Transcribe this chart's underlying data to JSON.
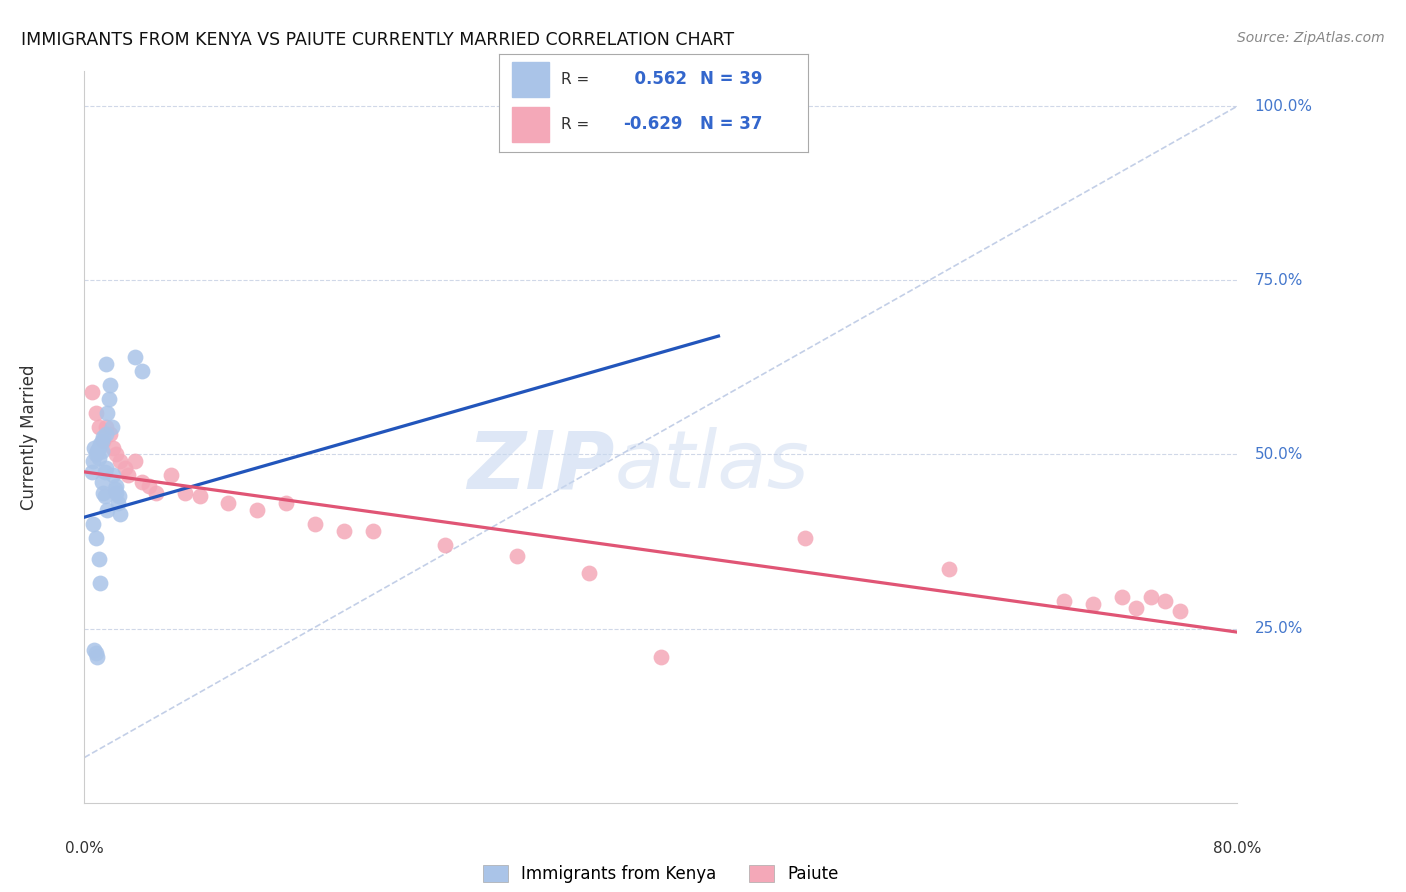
{
  "title": "IMMIGRANTS FROM KENYA VS PAIUTE CURRENTLY MARRIED CORRELATION CHART",
  "source": "Source: ZipAtlas.com",
  "ylabel": "Currently Married",
  "legend_label1": "Immigrants from Kenya",
  "legend_label2": "Paiute",
  "r1": 0.562,
  "n1": 39,
  "r2": -0.629,
  "n2": 37,
  "color_blue": "#aac4e8",
  "color_pink": "#f4a8b8",
  "color_blue_line": "#2255bb",
  "color_pink_line": "#e05575",
  "color_diag": "#aabbdd",
  "kenya_x": [
    0.005,
    0.006,
    0.007,
    0.008,
    0.009,
    0.01,
    0.01,
    0.011,
    0.012,
    0.012,
    0.013,
    0.014,
    0.015,
    0.015,
    0.016,
    0.017,
    0.018,
    0.019,
    0.02,
    0.021,
    0.022,
    0.022,
    0.023,
    0.024,
    0.025,
    0.006,
    0.008,
    0.01,
    0.012,
    0.014,
    0.016,
    0.035,
    0.04,
    0.007,
    0.008,
    0.009,
    0.011,
    0.013,
    0.015
  ],
  "kenya_y": [
    0.475,
    0.49,
    0.51,
    0.5,
    0.505,
    0.51,
    0.495,
    0.515,
    0.52,
    0.505,
    0.525,
    0.475,
    0.48,
    0.53,
    0.56,
    0.58,
    0.6,
    0.54,
    0.47,
    0.45,
    0.445,
    0.455,
    0.43,
    0.44,
    0.415,
    0.4,
    0.38,
    0.35,
    0.46,
    0.44,
    0.42,
    0.64,
    0.62,
    0.22,
    0.215,
    0.21,
    0.315,
    0.445,
    0.63
  ],
  "paiute_x": [
    0.005,
    0.008,
    0.01,
    0.013,
    0.015,
    0.018,
    0.02,
    0.022,
    0.025,
    0.028,
    0.03,
    0.035,
    0.04,
    0.045,
    0.05,
    0.06,
    0.07,
    0.08,
    0.1,
    0.12,
    0.14,
    0.16,
    0.18,
    0.5,
    0.6,
    0.68,
    0.7,
    0.72,
    0.73,
    0.74,
    0.75,
    0.76,
    0.2,
    0.25,
    0.3,
    0.35,
    0.4
  ],
  "paiute_y": [
    0.59,
    0.56,
    0.54,
    0.52,
    0.54,
    0.53,
    0.51,
    0.5,
    0.49,
    0.48,
    0.47,
    0.49,
    0.46,
    0.455,
    0.445,
    0.47,
    0.445,
    0.44,
    0.43,
    0.42,
    0.43,
    0.4,
    0.39,
    0.38,
    0.335,
    0.29,
    0.285,
    0.295,
    0.28,
    0.295,
    0.29,
    0.275,
    0.39,
    0.37,
    0.355,
    0.33,
    0.21
  ],
  "blue_line_x": [
    0.0,
    0.44
  ],
  "blue_line_y": [
    0.41,
    0.67
  ],
  "pink_line_x": [
    0.0,
    0.8
  ],
  "pink_line_y": [
    0.475,
    0.245
  ],
  "diag_line_x": [
    0.0,
    0.8
  ],
  "diag_line_y": [
    0.065,
    1.0
  ],
  "xmin": 0.0,
  "xmax": 0.8,
  "ymin": 0.0,
  "ymax": 1.05,
  "ytick_vals": [
    0.25,
    0.5,
    0.75,
    1.0
  ],
  "ytick_labels": [
    "25.0%",
    "50.0%",
    "75.0%",
    "100.0%"
  ]
}
